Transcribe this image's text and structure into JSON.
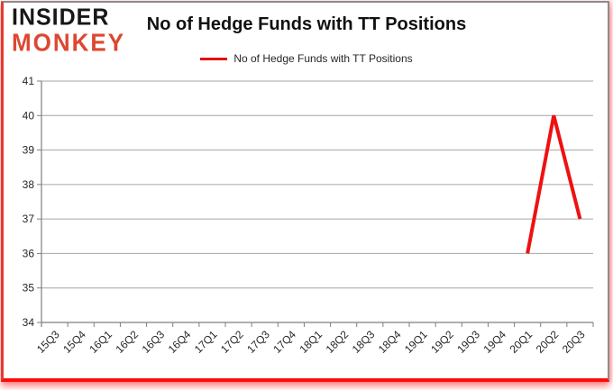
{
  "header": {
    "logo_line1": "INSIDER",
    "logo_line2": "MONKEY",
    "title": "No of Hedge Funds with TT Positions"
  },
  "legend": {
    "label": "No of Hedge Funds with TT Positions"
  },
  "colors": {
    "series_line": "#ee1111",
    "legend_swatch": "#e01111",
    "gridline": "#a6a6a6",
    "axis": "#7f7f7f",
    "tick_label": "#262626",
    "logo_black": "#171717",
    "logo_red": "#dd4731",
    "frame_gray": "#8c8c8c",
    "frame_red": "#fb0d0d"
  },
  "chart_data": {
    "type": "line",
    "title": "No of Hedge Funds with TT Positions",
    "xlabel": "",
    "ylabel": "",
    "ylim": [
      34,
      41
    ],
    "ytick_step": 1,
    "grid": true,
    "legend_position": "top-center",
    "categories": [
      "15Q3",
      "15Q4",
      "16Q1",
      "16Q2",
      "16Q3",
      "16Q4",
      "17Q1",
      "17Q2",
      "17Q3",
      "17Q4",
      "18Q1",
      "18Q2",
      "18Q3",
      "18Q4",
      "19Q1",
      "19Q2",
      "19Q3",
      "19Q4",
      "20Q1",
      "20Q2",
      "20Q3"
    ],
    "series": [
      {
        "name": "No of Hedge Funds with TT Positions",
        "color": "#ee1111",
        "values": [
          null,
          null,
          null,
          null,
          null,
          null,
          null,
          null,
          null,
          null,
          null,
          null,
          null,
          null,
          null,
          null,
          null,
          null,
          36,
          40,
          37
        ]
      }
    ]
  }
}
